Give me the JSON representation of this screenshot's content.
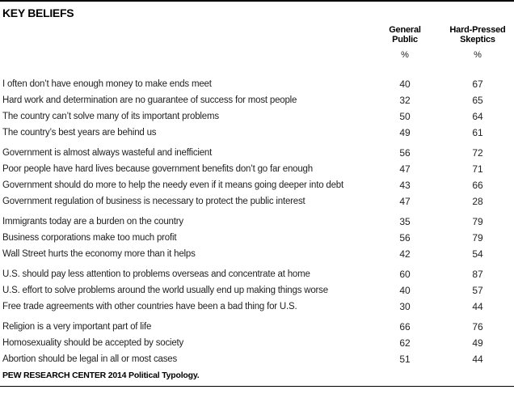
{
  "title": "KEY BELIEFS",
  "columns": [
    {
      "label": "General\nPublic",
      "unit": "%"
    },
    {
      "label": "Hard-Pressed\nSkeptics",
      "unit": "%"
    }
  ],
  "groups": [
    {
      "rows": [
        {
          "label": "I often don’t have enough money to make ends meet",
          "values": [
            40,
            67
          ]
        },
        {
          "label": "Hard work and determination are no guarantee of success for most people",
          "values": [
            32,
            65
          ]
        },
        {
          "label": "The country can’t solve many of its important problems",
          "values": [
            50,
            64
          ]
        },
        {
          "label": "The country’s best years are behind us",
          "values": [
            49,
            61
          ]
        }
      ]
    },
    {
      "rows": [
        {
          "label": "Government is almost always wasteful and inefficient",
          "values": [
            56,
            72
          ]
        },
        {
          "label": "Poor people have hard lives because government benefits don’t go far enough",
          "values": [
            47,
            71
          ]
        },
        {
          "label": "Government should do more to help the needy even if it means going deeper into debt",
          "values": [
            43,
            66
          ]
        },
        {
          "label": "Government regulation of business is necessary to protect the public interest",
          "values": [
            47,
            28
          ]
        }
      ]
    },
    {
      "rows": [
        {
          "label": "Immigrants today are a burden on the country",
          "values": [
            35,
            79
          ]
        },
        {
          "label": "Business corporations make too much profit",
          "values": [
            56,
            79
          ]
        },
        {
          "label": "Wall Street hurts the economy more than it helps",
          "values": [
            42,
            54
          ]
        }
      ]
    },
    {
      "rows": [
        {
          "label": "U.S. should pay less attention to problems overseas and concentrate at home",
          "values": [
            60,
            87
          ]
        },
        {
          "label": "U.S. effort to solve problems around the world usually end up making things worse",
          "values": [
            40,
            57
          ]
        },
        {
          "label": "Free trade agreements with other countries have been a bad thing for U.S.",
          "values": [
            30,
            44
          ]
        }
      ]
    },
    {
      "rows": [
        {
          "label": "Religion is a very important part of life",
          "values": [
            66,
            76
          ]
        },
        {
          "label": "Homosexuality should be accepted by society",
          "values": [
            62,
            49
          ]
        },
        {
          "label": "Abortion should be legal in all or most cases",
          "values": [
            51,
            44
          ]
        }
      ]
    }
  ],
  "footer": "PEW RESEARCH CENTER 2014 Political Typology.",
  "colors": {
    "text": "#222222",
    "rule": "#000000",
    "background": "#ffffff"
  },
  "chart_data": {
    "type": "table",
    "title": "KEY BELIEFS",
    "categories": [
      "I often don’t have enough money to make ends meet",
      "Hard work and determination are no guarantee of success for most people",
      "The country can’t solve many of its important problems",
      "The country’s best years are behind us",
      "Government is almost always wasteful and inefficient",
      "Poor people have hard lives because government benefits don’t go far enough",
      "Government should do more to help the needy even if it means going deeper into debt",
      "Government regulation of business is necessary to protect the public interest",
      "Immigrants today are a burden on the country",
      "Business corporations make too much profit",
      "Wall Street hurts the economy more than it helps",
      "U.S. should pay less attention to problems overseas and concentrate at home",
      "U.S. effort to solve problems around the world usually end up making things worse",
      "Free trade agreements with other countries have been a bad thing for U.S.",
      "Religion is a very important part of life",
      "Homosexuality should be accepted by society",
      "Abortion should be legal in all or most cases"
    ],
    "series": [
      {
        "name": "General Public",
        "values": [
          40,
          32,
          50,
          49,
          56,
          47,
          43,
          47,
          35,
          56,
          42,
          60,
          40,
          30,
          66,
          62,
          51
        ]
      },
      {
        "name": "Hard-Pressed Skeptics",
        "values": [
          67,
          65,
          64,
          61,
          72,
          71,
          66,
          28,
          79,
          79,
          54,
          87,
          57,
          44,
          76,
          49,
          44
        ]
      }
    ],
    "unit": "%",
    "source": "PEW RESEARCH CENTER 2014 Political Typology.",
    "row_groups": [
      [
        0,
        3
      ],
      [
        4,
        7
      ],
      [
        8,
        10
      ],
      [
        11,
        13
      ],
      [
        14,
        16
      ]
    ]
  }
}
